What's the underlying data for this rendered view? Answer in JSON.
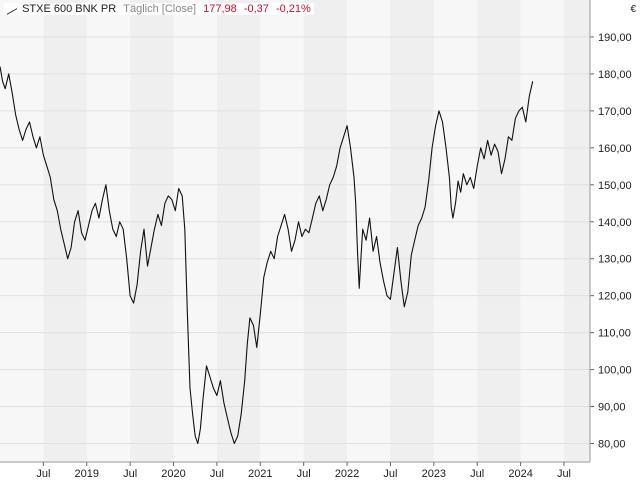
{
  "legend": {
    "name": "STXE 600 BNK PR",
    "interval": "Täglich [Close]",
    "last": "177,98",
    "change": "-0,37",
    "change_pct": "-0,21%"
  },
  "currency": "€",
  "colors": {
    "line": "#111111",
    "band_light": "#f7f7f7",
    "band_dark": "#efefef",
    "grid": "#e0e0e0",
    "negative": "#c8102e"
  },
  "chart_data": {
    "type": "line",
    "title": "STXE 600 BNK PR",
    "grid": true,
    "y_axis_position": "right",
    "ylim": [
      75,
      200
    ],
    "y_ticks": [
      80,
      90,
      100,
      110,
      120,
      130,
      140,
      150,
      160,
      170,
      180,
      190
    ],
    "y_tick_labels": [
      "80,00",
      "90,00",
      "100,00",
      "110,00",
      "120,00",
      "130,00",
      "140,00",
      "150,00",
      "160,00",
      "170,00",
      "180,00",
      "190,00"
    ],
    "xlim": [
      2018.0,
      2024.8
    ],
    "x_ticks": [
      2018.5,
      2019.0,
      2019.5,
      2020.0,
      2020.5,
      2021.0,
      2021.5,
      2022.0,
      2022.5,
      2023.0,
      2023.5,
      2024.0,
      2024.5
    ],
    "x_tick_labels": [
      "Jul",
      "2019",
      "Jul",
      "2020",
      "Jul",
      "2021",
      "Jul",
      "2022",
      "Jul",
      "2023",
      "Jul",
      "2024",
      "Jul"
    ],
    "series": [
      {
        "x": [
          2018.0,
          2018.03,
          2018.06,
          2018.1,
          2018.14,
          2018.18,
          2018.22,
          2018.26,
          2018.3,
          2018.34,
          2018.38,
          2018.42,
          2018.46,
          2018.5,
          2018.54,
          2018.58,
          2018.62,
          2018.66,
          2018.7,
          2018.74,
          2018.78,
          2018.82,
          2018.86,
          2018.9,
          2018.94,
          2018.98,
          2019.02,
          2019.06,
          2019.1,
          2019.14,
          2019.18,
          2019.22,
          2019.26,
          2019.3,
          2019.34,
          2019.38,
          2019.42,
          2019.46,
          2019.5,
          2019.54,
          2019.58,
          2019.62,
          2019.66,
          2019.7,
          2019.74,
          2019.78,
          2019.82,
          2019.86,
          2019.9,
          2019.94,
          2019.98,
          2020.02,
          2020.06,
          2020.1,
          2020.13,
          2020.16,
          2020.19,
          2020.22,
          2020.25,
          2020.28,
          2020.31,
          2020.34,
          2020.38,
          2020.42,
          2020.46,
          2020.5,
          2020.54,
          2020.58,
          2020.62,
          2020.66,
          2020.7,
          2020.74,
          2020.78,
          2020.82,
          2020.85,
          2020.88,
          2020.92,
          2020.96,
          2021.0,
          2021.04,
          2021.08,
          2021.12,
          2021.16,
          2021.2,
          2021.24,
          2021.28,
          2021.32,
          2021.36,
          2021.4,
          2021.44,
          2021.48,
          2021.52,
          2021.56,
          2021.6,
          2021.64,
          2021.68,
          2021.72,
          2021.76,
          2021.8,
          2021.84,
          2021.88,
          2021.92,
          2021.96,
          2022.0,
          2022.04,
          2022.08,
          2022.1,
          2022.12,
          2022.14,
          2022.16,
          2022.18,
          2022.22,
          2022.26,
          2022.3,
          2022.34,
          2022.38,
          2022.42,
          2022.46,
          2022.5,
          2022.54,
          2022.58,
          2022.62,
          2022.66,
          2022.7,
          2022.74,
          2022.78,
          2022.82,
          2022.86,
          2022.9,
          2022.94,
          2022.98,
          2023.02,
          2023.06,
          2023.1,
          2023.14,
          2023.18,
          2023.2,
          2023.22,
          2023.25,
          2023.28,
          2023.31,
          2023.34,
          2023.38,
          2023.42,
          2023.46,
          2023.5,
          2023.54,
          2023.58,
          2023.62,
          2023.66,
          2023.7,
          2023.74,
          2023.78,
          2023.82,
          2023.86,
          2023.9,
          2023.94,
          2023.98,
          2024.02,
          2024.06,
          2024.1,
          2024.14
        ],
        "values": [
          182.0,
          178.0,
          176.0,
          180.0,
          175.0,
          169.0,
          165.0,
          162.0,
          165.0,
          167.0,
          163.0,
          160.0,
          163.0,
          158.0,
          155.0,
          152.0,
          146.0,
          143.0,
          138.0,
          134.0,
          130.0,
          133.0,
          140.0,
          143.0,
          137.0,
          135.0,
          139.0,
          143.0,
          145.0,
          141.0,
          146.0,
          150.0,
          143.0,
          138.0,
          136.0,
          140.0,
          138.0,
          130.0,
          120.0,
          118.0,
          123.0,
          132.0,
          138.0,
          128.0,
          133.0,
          138.0,
          142.0,
          139.0,
          145.0,
          147.0,
          146.0,
          143.0,
          149.0,
          147.0,
          138.0,
          115.0,
          95.0,
          88.0,
          82.0,
          80.0,
          84.0,
          92.0,
          101.0,
          98.0,
          95.0,
          93.0,
          97.0,
          91.0,
          87.0,
          83.0,
          80.0,
          82.0,
          88.0,
          97.0,
          107.0,
          114.0,
          112.0,
          106.0,
          115.0,
          125.0,
          129.0,
          132.0,
          130.0,
          136.0,
          139.0,
          142.0,
          138.0,
          132.0,
          135.0,
          140.0,
          136.0,
          138.0,
          137.0,
          141.0,
          145.0,
          147.0,
          143.0,
          146.0,
          150.0,
          152.0,
          155.0,
          160.0,
          163.0,
          166.0,
          160.0,
          152.0,
          145.0,
          132.0,
          122.0,
          130.0,
          138.0,
          135.0,
          141.0,
          132.0,
          136.0,
          129.0,
          124.0,
          120.0,
          119.0,
          126.0,
          133.0,
          124.0,
          117.0,
          121.0,
          131.0,
          135.0,
          139.0,
          141.0,
          144.0,
          151.0,
          160.0,
          166.0,
          170.0,
          167.0,
          160.0,
          152.0,
          144.0,
          141.0,
          145.0,
          151.0,
          148.0,
          153.0,
          150.0,
          152.0,
          149.0,
          155.0,
          160.0,
          157.0,
          162.0,
          158.0,
          161.0,
          159.0,
          153.0,
          157.0,
          163.0,
          162.0,
          168.0,
          170.0,
          171.0,
          167.0,
          174.0,
          178.0
        ]
      }
    ]
  }
}
